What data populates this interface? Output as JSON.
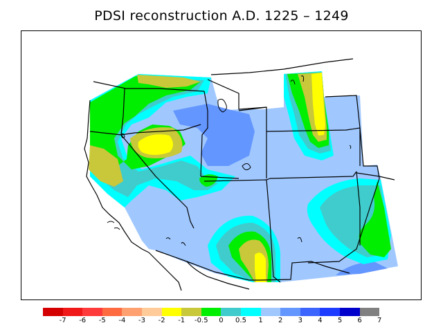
{
  "title": "PDSI reconstruction A.D. 1225 – 1249",
  "legend": {
    "colors": [
      "#d40000",
      "#f01818",
      "#ff3a3a",
      "#ff6a40",
      "#ffa070",
      "#ffcc99",
      "#ffff00",
      "#c8c83a",
      "#00ee00",
      "#40cccc",
      "#00ffff",
      "#a0c8ff",
      "#6496ff",
      "#3c64ff",
      "#1e3cff",
      "#0000cd",
      "#808080"
    ],
    "tick_labels": [
      "-7",
      "-6",
      "-5",
      "-4",
      "-3",
      "-2",
      "-1",
      "-0.5",
      "0",
      "0.5",
      "1",
      "2",
      "3",
      "4",
      "5",
      "6",
      "7"
    ]
  },
  "map": {
    "fill_colors": {
      "dry_moderate": "#c8c83a",
      "dry_mild": "#ffff00",
      "near_normal": "#00ee00",
      "wet_slight": "#40cccc",
      "wet_light": "#00ffff",
      "wet_moderate": "#a0c8ff",
      "wet_strong": "#6496ff"
    }
  }
}
